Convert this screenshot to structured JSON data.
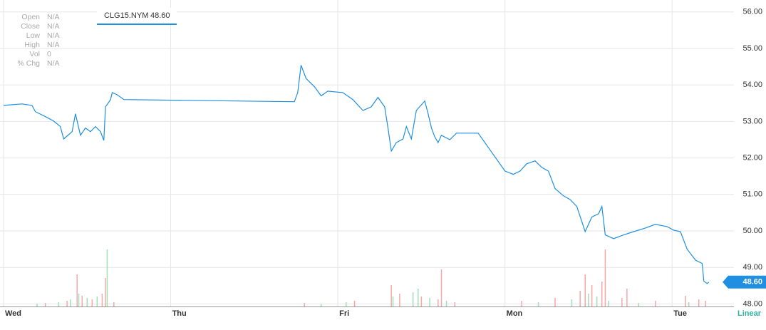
{
  "info_panel": {
    "rows": [
      [
        "Open",
        "N/A"
      ],
      [
        "Close",
        "N/A"
      ],
      [
        "Low",
        "N/A"
      ],
      [
        "High",
        "N/A"
      ],
      [
        "Vol",
        "0"
      ],
      [
        "% Chg",
        "N/A"
      ]
    ]
  },
  "chart_data": {
    "type": "line",
    "scale": "Linear",
    "grid": true,
    "last_price": {
      "value": 48.6,
      "label": "48.60"
    },
    "xlim": [
      0,
      4.37
    ],
    "xticks": [
      {
        "value": 0,
        "label": "Wed"
      },
      {
        "value": 1,
        "label": "Thu"
      },
      {
        "value": 2,
        "label": "Fri"
      },
      {
        "value": 3,
        "label": "Mon"
      },
      {
        "value": 4,
        "label": "Tue"
      }
    ],
    "ylim": [
      47.93,
      56.23
    ],
    "yticks": [
      {
        "value": 48,
        "label": "48.00"
      },
      {
        "value": 49,
        "label": "49.00"
      },
      {
        "value": 50,
        "label": "50.00"
      },
      {
        "value": 51,
        "label": "51.00"
      },
      {
        "value": 52,
        "label": "52.00"
      },
      {
        "value": 53,
        "label": "53.00"
      },
      {
        "value": 54,
        "label": "54.00"
      },
      {
        "value": 55,
        "label": "55.00"
      },
      {
        "value": 56,
        "label": "56.00"
      }
    ],
    "series": [
      {
        "name": "CLG15.NYM",
        "color": "#1e8fe1",
        "x": [
          0,
          0.11,
          0.17,
          0.19,
          0.26,
          0.3,
          0.34,
          0.36,
          0.41,
          0.43,
          0.46,
          0.49,
          0.52,
          0.55,
          0.58,
          0.6,
          0.61,
          0.64,
          0.65,
          0.68,
          0.72,
          1.74,
          1.76,
          1.78,
          1.81,
          1.86,
          1.9,
          1.94,
          2.03,
          2.09,
          2.15,
          2.2,
          2.24,
          2.28,
          2.3,
          2.32,
          2.35,
          2.39,
          2.41,
          2.44,
          2.47,
          2.52,
          2.54,
          2.56,
          2.58,
          2.6,
          2.62,
          2.67,
          2.71,
          2.84,
          3.0,
          3.05,
          3.09,
          3.13,
          3.18,
          3.22,
          3.26,
          3.3,
          3.35,
          3.39,
          3.43,
          3.48,
          3.52,
          3.56,
          3.58,
          3.6,
          3.65,
          3.71,
          3.77,
          3.84,
          3.9,
          3.97,
          4.01,
          4.05,
          4.09,
          4.14,
          4.18,
          4.19,
          4.21,
          4.22
        ],
        "values": [
          53.44,
          53.48,
          53.44,
          53.27,
          53.11,
          53.01,
          52.86,
          52.52,
          52.72,
          53.21,
          52.62,
          52.82,
          52.72,
          52.86,
          52.72,
          52.48,
          53.4,
          53.6,
          53.79,
          53.73,
          53.6,
          53.54,
          53.79,
          54.54,
          54.18,
          53.95,
          53.7,
          53.83,
          53.79,
          53.6,
          53.3,
          53.4,
          53.66,
          53.4,
          52.82,
          52.19,
          52.42,
          52.52,
          52.86,
          52.52,
          53.3,
          53.56,
          53.21,
          52.82,
          52.58,
          52.42,
          52.62,
          52.5,
          52.68,
          52.68,
          51.64,
          51.55,
          51.64,
          51.84,
          51.92,
          51.74,
          51.64,
          51.16,
          50.96,
          50.86,
          50.67,
          49.98,
          50.38,
          50.47,
          50.67,
          49.89,
          49.79,
          49.89,
          49.98,
          50.08,
          50.18,
          50.12,
          50.02,
          49.98,
          49.5,
          49.2,
          49.11,
          48.62,
          48.56,
          48.6
        ]
      }
    ],
    "volume_up": {
      "color": "#9fe0b8",
      "x": [
        0.2,
        0.33,
        0.4,
        0.45,
        0.5,
        0.56,
        0.62,
        1.9,
        2.05,
        2.33,
        2.45,
        2.48,
        2.55,
        2.65,
        3.2,
        3.4,
        3.5,
        3.55,
        3.62,
        3.8,
        4.1
      ],
      "values": [
        4,
        6,
        10,
        18,
        12,
        14,
        80,
        4,
        6,
        14,
        20,
        25,
        12,
        8,
        6,
        10,
        18,
        14,
        8,
        5,
        6
      ]
    },
    "volume_down": {
      "color": "#f4a9a9",
      "x": [
        0.25,
        0.38,
        0.44,
        0.47,
        0.53,
        0.59,
        0.61,
        0.66,
        1.8,
        2.1,
        2.32,
        2.37,
        2.5,
        2.6,
        2.62,
        2.7,
        3.1,
        3.3,
        3.45,
        3.48,
        3.52,
        3.58,
        3.6,
        3.7,
        3.73,
        3.9,
        4.08,
        4.16,
        4.2
      ],
      "values": [
        5,
        8,
        45,
        15,
        10,
        18,
        40,
        6,
        5,
        8,
        30,
        18,
        14,
        10,
        52,
        6,
        8,
        12,
        22,
        45,
        30,
        35,
        80,
        12,
        25,
        8,
        15,
        10,
        8
      ]
    }
  }
}
